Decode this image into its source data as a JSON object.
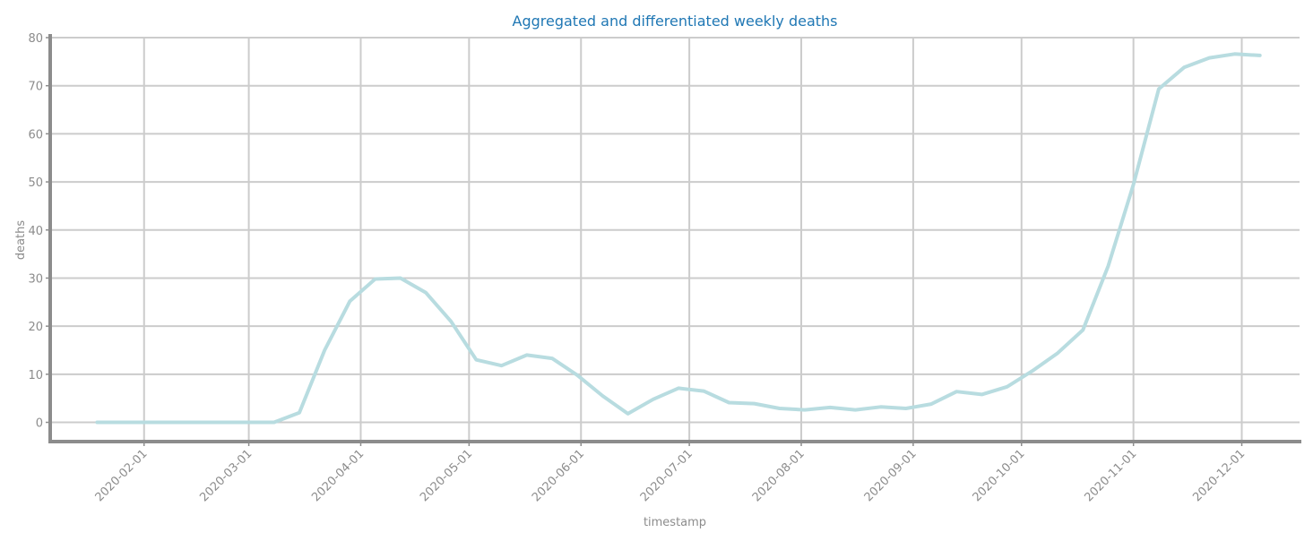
{
  "chart_data": {
    "type": "line",
    "title": "Aggregated and differentiated weekly deaths",
    "xlabel": "timestamp",
    "ylabel": "deaths",
    "ylim": [
      -4,
      80
    ],
    "xlim": [
      "2020-01-06",
      "2020-12-17"
    ],
    "grid": true,
    "series_color": "#b8dce0",
    "title_color": "#1f77b4",
    "yticks": [
      0,
      10,
      20,
      30,
      40,
      50,
      60,
      70,
      80
    ],
    "xticks": [
      "2020-02-01",
      "2020-03-01",
      "2020-04-01",
      "2020-05-01",
      "2020-06-01",
      "2020-07-01",
      "2020-08-01",
      "2020-09-01",
      "2020-10-01",
      "2020-11-01",
      "2020-12-01"
    ],
    "x": [
      "2020-01-19",
      "2020-01-26",
      "2020-02-02",
      "2020-02-09",
      "2020-02-16",
      "2020-02-23",
      "2020-03-01",
      "2020-03-08",
      "2020-03-15",
      "2020-03-22",
      "2020-03-29",
      "2020-04-05",
      "2020-04-12",
      "2020-04-19",
      "2020-04-26",
      "2020-05-03",
      "2020-05-10",
      "2020-05-17",
      "2020-05-24",
      "2020-05-31",
      "2020-06-07",
      "2020-06-14",
      "2020-06-21",
      "2020-06-28",
      "2020-07-05",
      "2020-07-12",
      "2020-07-19",
      "2020-07-26",
      "2020-08-02",
      "2020-08-09",
      "2020-08-16",
      "2020-08-23",
      "2020-08-30",
      "2020-09-06",
      "2020-09-13",
      "2020-09-20",
      "2020-09-27",
      "2020-10-04",
      "2020-10-11",
      "2020-10-18",
      "2020-10-25",
      "2020-11-01",
      "2020-11-08",
      "2020-11-15",
      "2020-11-22",
      "2020-11-29",
      "2020-12-06"
    ],
    "values": [
      0,
      0,
      0,
      0,
      0,
      0,
      0,
      0,
      2,
      15,
      25.2,
      29.8,
      30,
      27,
      21,
      13,
      11.8,
      14,
      13.3,
      9.8,
      5.5,
      1.8,
      4.8,
      7.1,
      6.5,
      4.1,
      3.9,
      2.9,
      2.6,
      3.1,
      2.6,
      3.2,
      2.9,
      3.8,
      6.4,
      5.8,
      7.4,
      10.7,
      14.4,
      19.2,
      32.5,
      49.5,
      69.3,
      73.8,
      75.8,
      76.6,
      76.3
    ]
  }
}
